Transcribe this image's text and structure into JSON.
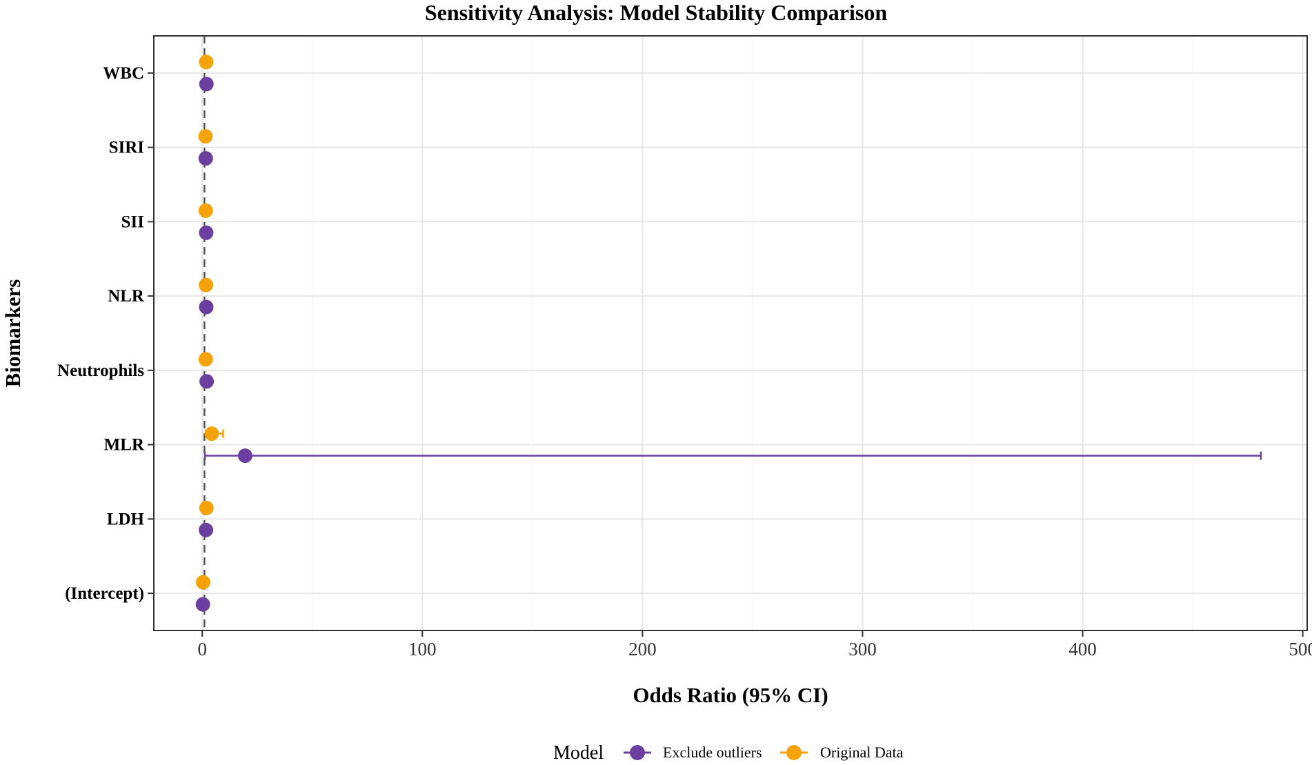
{
  "chart_data": {
    "type": "scatter",
    "title": "Sensitivity Analysis: Model Stability Comparison",
    "xlabel": "Odds Ratio (95% CI)",
    "ylabel": "Biomarkers",
    "categories": [
      "WBC",
      "SIRI",
      "SII",
      "NLR",
      "Neutrophils",
      "MLR",
      "LDH",
      "(Intercept)"
    ],
    "xlim": [
      -22,
      502
    ],
    "xticks": [
      0,
      100,
      200,
      300,
      400,
      500
    ],
    "reference_line": 1,
    "grid": true,
    "legend": {
      "title": "Model",
      "position": "bottom"
    },
    "series": [
      {
        "name": "Exclude outliers",
        "color": "#6B3FA0",
        "values": [
          1.9,
          1.6,
          1.8,
          1.8,
          2.0,
          19.5,
          1.7,
          0.3
        ],
        "ci_low": [
          1.6,
          1.3,
          1.5,
          1.5,
          1.7,
          1.2,
          1.4,
          0.1
        ],
        "ci_high": [
          2.2,
          1.9,
          2.1,
          2.1,
          2.3,
          481,
          2.0,
          0.6
        ]
      },
      {
        "name": "Original Data",
        "color": "#F5A30B",
        "values": [
          1.8,
          1.5,
          1.6,
          1.7,
          1.6,
          4.3,
          1.9,
          0.4
        ],
        "ci_low": [
          1.5,
          1.2,
          1.3,
          1.4,
          1.3,
          2.5,
          1.6,
          0.2
        ],
        "ci_high": [
          2.1,
          1.8,
          1.9,
          2.0,
          1.9,
          9.5,
          2.2,
          0.7
        ]
      }
    ]
  }
}
